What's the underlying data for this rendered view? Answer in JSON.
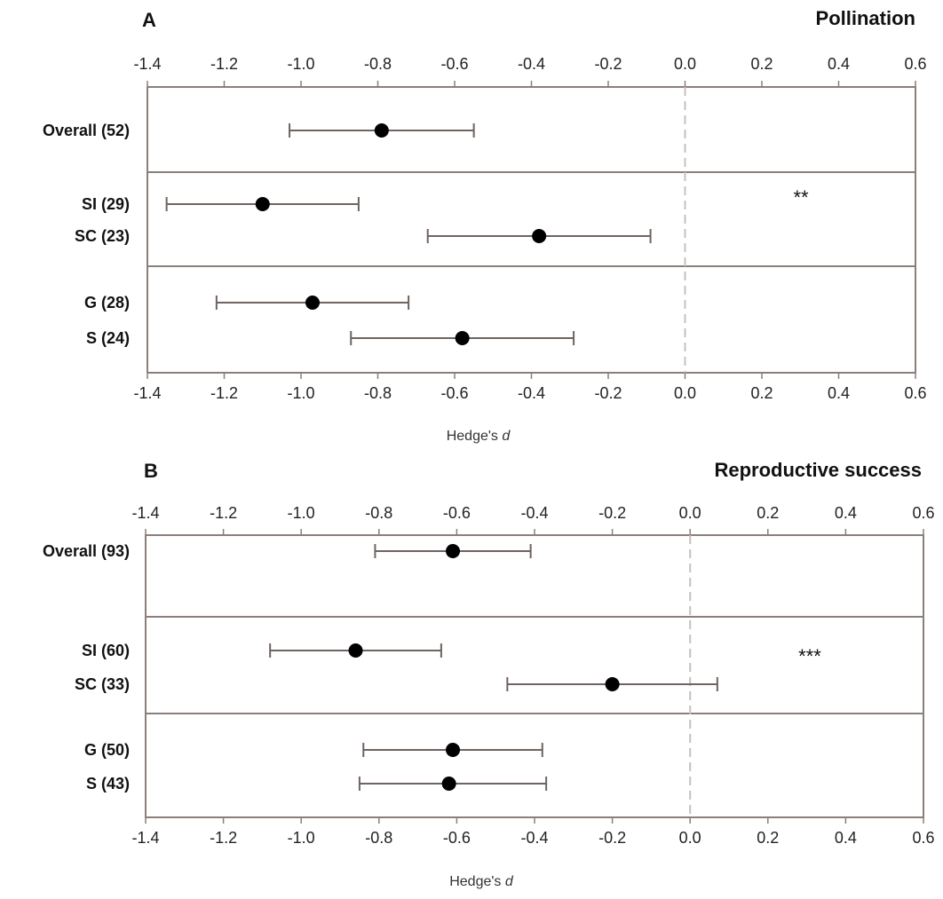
{
  "chart_data": [
    {
      "type": "scatter",
      "panel_letter": "A",
      "title": "Pollination",
      "xlabel": "Hedge's",
      "xlabel_italic": "d",
      "xlim": [
        -1.4,
        0.6
      ],
      "xticks": [
        "-1.4",
        "-1.2",
        "-1.0",
        "-0.8",
        "-0.6",
        "-0.4",
        "-0.2",
        "0.0",
        "0.2",
        "0.4",
        "0.6"
      ],
      "reference_line": 0.0,
      "groups": [
        {
          "rows": [
            {
              "label": "Overall (52)",
              "mean": -0.79,
              "ci_low": -1.03,
              "ci_high": -0.55
            }
          ]
        },
        {
          "significance": "**",
          "rows": [
            {
              "label": "SI (29)",
              "mean": -1.1,
              "ci_low": -1.35,
              "ci_high": -0.85
            },
            {
              "label": "SC (23)",
              "mean": -0.38,
              "ci_low": -0.67,
              "ci_high": -0.09
            }
          ]
        },
        {
          "rows": [
            {
              "label": "G (28)",
              "mean": -0.97,
              "ci_low": -1.22,
              "ci_high": -0.72
            },
            {
              "label": "S (24)",
              "mean": -0.58,
              "ci_low": -0.87,
              "ci_high": -0.29
            }
          ]
        }
      ]
    },
    {
      "type": "scatter",
      "panel_letter": "B",
      "title": "Reproductive success",
      "xlabel": "Hedge's",
      "xlabel_italic": "d",
      "xlim": [
        -1.4,
        0.6
      ],
      "xticks": [
        "-1.4",
        "-1.2",
        "-1.0",
        "-0.8",
        "-0.6",
        "-0.4",
        "-0.2",
        "0.0",
        "0.2",
        "0.4",
        "0.6"
      ],
      "reference_line": 0.0,
      "groups": [
        {
          "rows": [
            {
              "label": "Overall (93)",
              "mean": -0.61,
              "ci_low": -0.81,
              "ci_high": -0.41
            }
          ]
        },
        {
          "significance": "***",
          "rows": [
            {
              "label": "SI (60)",
              "mean": -0.86,
              "ci_low": -1.08,
              "ci_high": -0.64
            },
            {
              "label": "SC (33)",
              "mean": -0.2,
              "ci_low": -0.47,
              "ci_high": 0.07
            }
          ]
        },
        {
          "rows": [
            {
              "label": "G (50)",
              "mean": -0.61,
              "ci_low": -0.84,
              "ci_high": -0.38
            },
            {
              "label": "S (43)",
              "mean": -0.62,
              "ci_low": -0.85,
              "ci_high": -0.37
            }
          ]
        }
      ]
    }
  ]
}
